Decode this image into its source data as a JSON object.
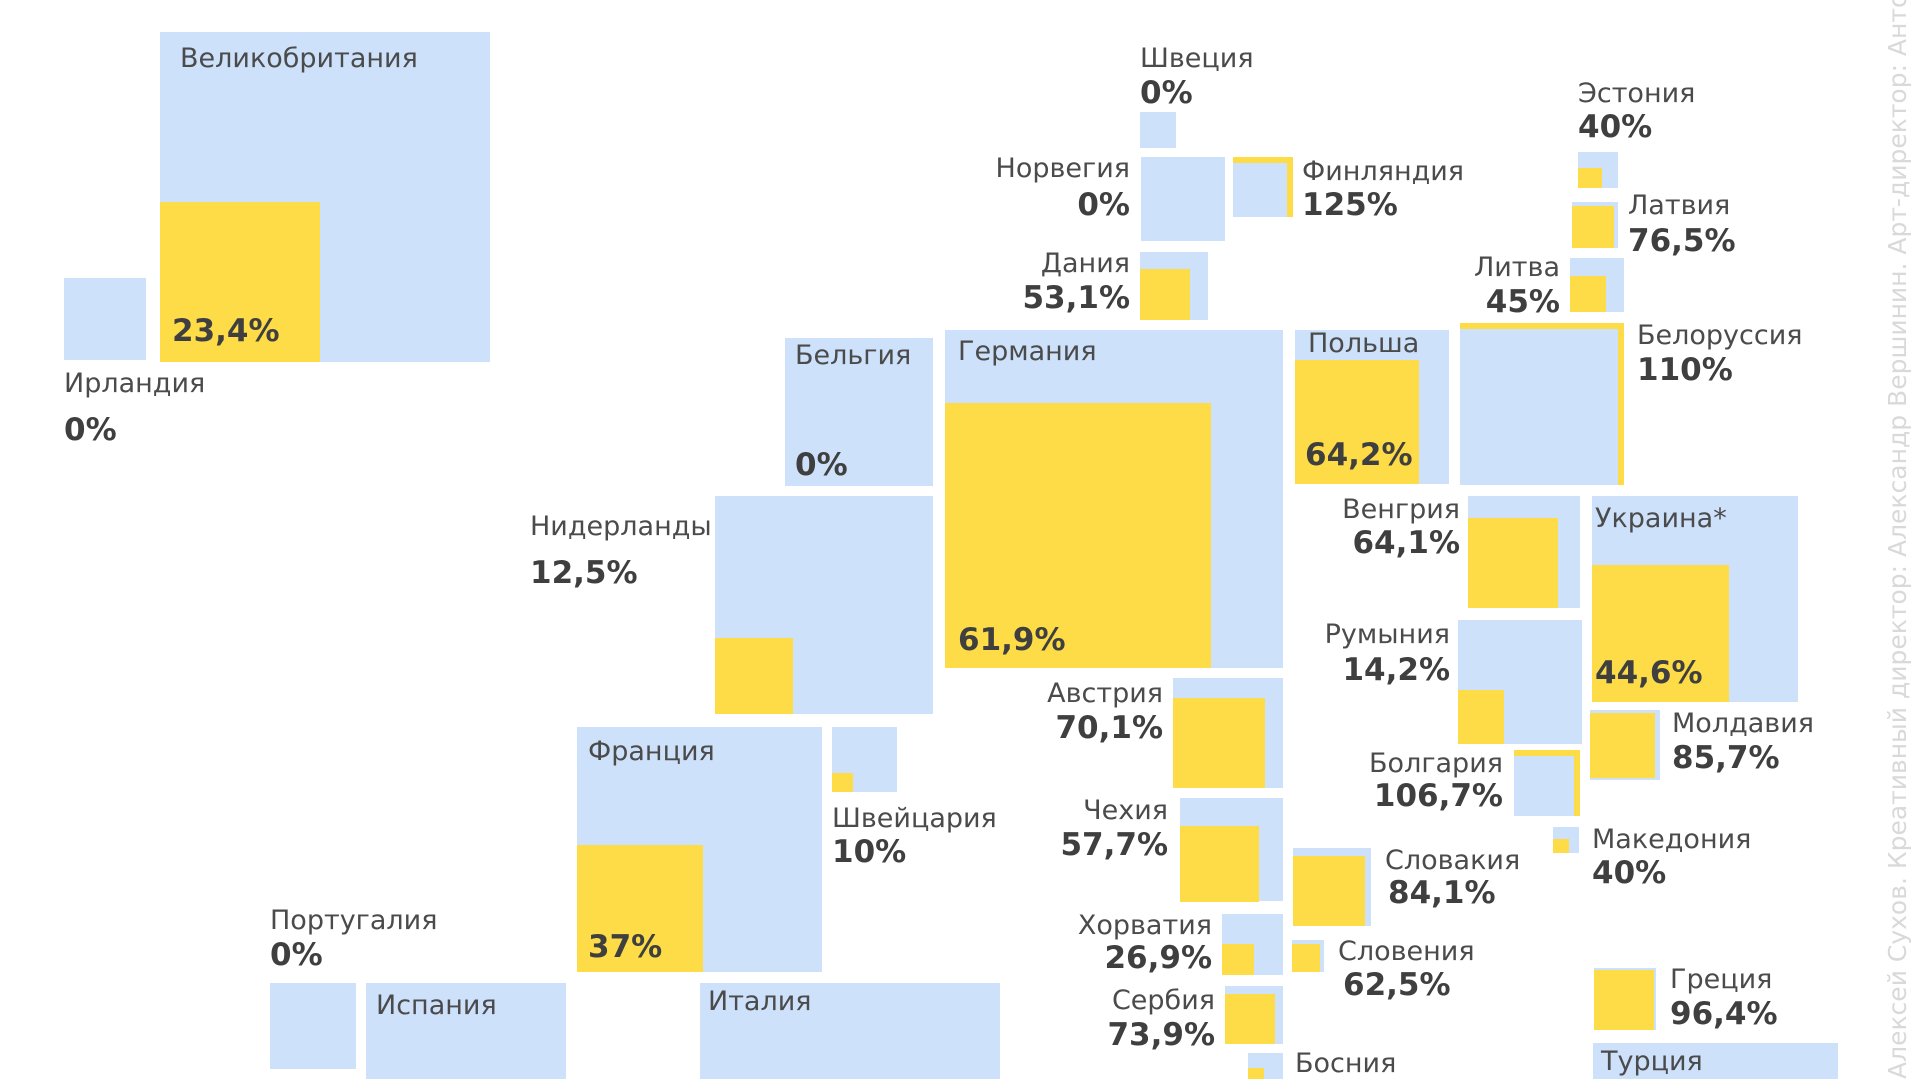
{
  "countries": [
    {
      "id": "uk",
      "name": "Великобритания",
      "pct": "23,4%",
      "value": 23.4
    },
    {
      "id": "ireland",
      "name": "Ирландия",
      "pct": "0%",
      "value": 0
    },
    {
      "id": "sweden",
      "name": "Швеция",
      "pct": "0%",
      "value": 0
    },
    {
      "id": "norway",
      "name": "Норвегия",
      "pct": "0%",
      "value": 0
    },
    {
      "id": "finland",
      "name": "Финляндия",
      "pct": "125%",
      "value": 125
    },
    {
      "id": "denmark",
      "name": "Дания",
      "pct": "53,1%",
      "value": 53.1
    },
    {
      "id": "estonia",
      "name": "Эстония",
      "pct": "40%",
      "value": 40
    },
    {
      "id": "latvia",
      "name": "Латвия",
      "pct": "76,5%",
      "value": 76.5
    },
    {
      "id": "lithuania",
      "name": "Литва",
      "pct": "45%",
      "value": 45
    },
    {
      "id": "belarus",
      "name": "Белоруссия",
      "pct": "110%",
      "value": 110
    },
    {
      "id": "belgium",
      "name": "Бельгия",
      "pct": "0%",
      "value": 0
    },
    {
      "id": "germany",
      "name": "Германия",
      "pct": "61,9%",
      "value": 61.9
    },
    {
      "id": "poland",
      "name": "Польша",
      "pct": "64,2%",
      "value": 64.2
    },
    {
      "id": "netherlands",
      "name": "Нидерланды",
      "pct": "12,5%",
      "value": 12.5
    },
    {
      "id": "hungary",
      "name": "Венгрия",
      "pct": "64,1%",
      "value": 64.1
    },
    {
      "id": "ukraine",
      "name": "Украина*",
      "pct": "44,6%",
      "value": 44.6
    },
    {
      "id": "romania",
      "name": "Румыния",
      "pct": "14,2%",
      "value": 14.2
    },
    {
      "id": "austria",
      "name": "Австрия",
      "pct": "70,1%",
      "value": 70.1
    },
    {
      "id": "moldova",
      "name": "Молдавия",
      "pct": "85,7%",
      "value": 85.7
    },
    {
      "id": "france",
      "name": "Франция",
      "pct": "37%",
      "value": 37
    },
    {
      "id": "switzerland",
      "name": "Швейцария",
      "pct": "10%",
      "value": 10
    },
    {
      "id": "bulgaria",
      "name": "Болгария",
      "pct": "106,7%",
      "value": 106.7
    },
    {
      "id": "czechia",
      "name": "Чехия",
      "pct": "57,7%",
      "value": 57.7
    },
    {
      "id": "macedonia",
      "name": "Македония",
      "pct": "40%",
      "value": 40
    },
    {
      "id": "slovakia",
      "name": "Словакия",
      "pct": "84,1%",
      "value": 84.1
    },
    {
      "id": "portugal",
      "name": "Португалия",
      "pct": "0%",
      "value": 0
    },
    {
      "id": "croatia",
      "name": "Хорватия",
      "pct": "26,9%",
      "value": 26.9
    },
    {
      "id": "slovenia",
      "name": "Словения",
      "pct": "62,5%",
      "value": 62.5
    },
    {
      "id": "greece",
      "name": "Греция",
      "pct": "96,4%",
      "value": 96.4
    },
    {
      "id": "serbia",
      "name": "Сербия",
      "pct": "73,9%",
      "value": 73.9
    },
    {
      "id": "spain",
      "name": "Испания",
      "pct": "",
      "value": null
    },
    {
      "id": "italy",
      "name": "Италия",
      "pct": "",
      "value": null
    },
    {
      "id": "bosnia",
      "name": "Босния",
      "pct": "",
      "value": null
    },
    {
      "id": "turkey",
      "name": "Турция",
      "pct": "",
      "value": null
    }
  ],
  "credit": "Алексей Сухов. Креативный директор: Александр Вершинин. Арт-директор: Антон",
  "colors": {
    "background_square": "#cde1fb",
    "fill_square": "#fddc48"
  },
  "chart_data": {
    "type": "heatmap",
    "title": "",
    "categories": [
      "Великобритания",
      "Ирландия",
      "Швеция",
      "Норвегия",
      "Финляндия",
      "Дания",
      "Эстония",
      "Латвия",
      "Литва",
      "Белоруссия",
      "Бельгия",
      "Германия",
      "Польша",
      "Нидерланды",
      "Венгрия",
      "Украина*",
      "Румыния",
      "Австрия",
      "Молдавия",
      "Франция",
      "Швейцария",
      "Болгария",
      "Чехия",
      "Македония",
      "Словакия",
      "Португалия",
      "Хорватия",
      "Словения",
      "Греция",
      "Сербия",
      "Испания",
      "Италия",
      "Босния",
      "Турция"
    ],
    "values": [
      23.4,
      0,
      0,
      0,
      125,
      53.1,
      40,
      76.5,
      45,
      110,
      0,
      61.9,
      64.2,
      12.5,
      64.1,
      44.6,
      14.2,
      70.1,
      85.7,
      37,
      10,
      106.7,
      57.7,
      40,
      84.1,
      0,
      26.9,
      62.5,
      96.4,
      73.9,
      null,
      null,
      null,
      null
    ],
    "unit": "%"
  }
}
